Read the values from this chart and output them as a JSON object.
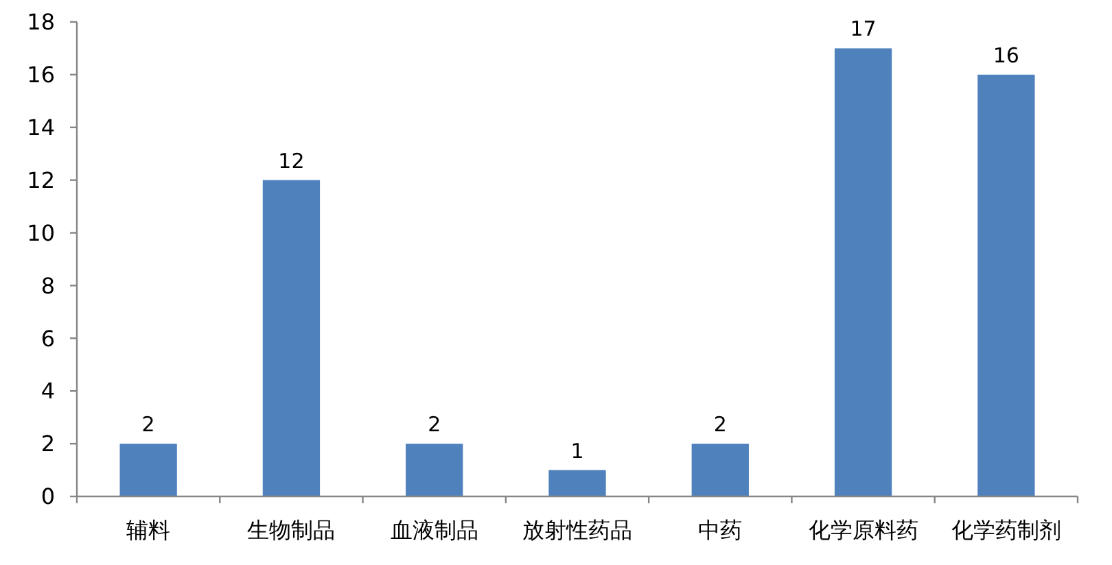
{
  "chart_data": {
    "type": "bar",
    "categories": [
      "辅料",
      "生物制品",
      "血液制品",
      "放射性药品",
      "中药",
      "化学原料药",
      "化学药制剂"
    ],
    "values": [
      2,
      12,
      2,
      1,
      2,
      17,
      16
    ],
    "color": "#4f81bd",
    "ylim": [
      0,
      18
    ],
    "yticks": [
      0,
      2,
      4,
      6,
      8,
      10,
      12,
      14,
      16,
      18
    ],
    "data_labels": true
  }
}
